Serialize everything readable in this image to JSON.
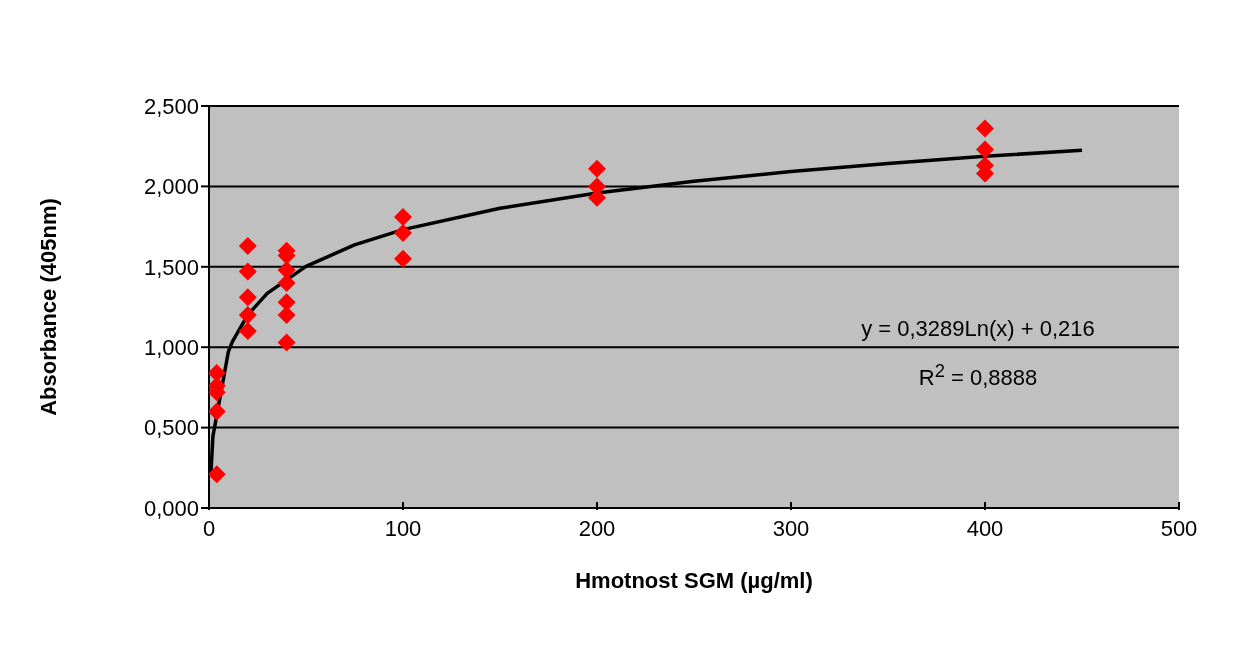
{
  "chart_data": {
    "type": "scatter",
    "xlabel": "Hmotnost SGM (µg/ml)",
    "ylabel": "Absorbance (405nm)",
    "xlim": [
      0,
      500
    ],
    "xticks": [
      0,
      100,
      200,
      300,
      400,
      500
    ],
    "ylim": [
      0,
      2.5
    ],
    "yticks": [
      {
        "value": 0,
        "label": "0,000"
      },
      {
        "value": 0.5,
        "label": "0,500"
      },
      {
        "value": 1,
        "label": "1,000"
      },
      {
        "value": 1.5,
        "label": "1,500"
      },
      {
        "value": 2,
        "label": "2,000"
      },
      {
        "value": 2.5,
        "label": "2,500"
      }
    ],
    "grid": "y",
    "series": [
      {
        "marker": "diamond",
        "color": "#ff0000",
        "x": [
          4,
          4,
          4,
          4,
          4,
          20,
          20,
          20,
          20,
          20,
          40,
          40,
          40,
          40,
          40,
          40,
          40,
          100,
          100,
          100,
          200,
          200,
          200,
          400,
          400,
          400,
          400
        ],
        "values": [
          0.84,
          0.76,
          0.72,
          0.6,
          0.21,
          1.63,
          1.47,
          1.31,
          1.2,
          1.1,
          1.6,
          1.57,
          1.48,
          1.4,
          1.28,
          1.2,
          1.03,
          1.81,
          1.71,
          1.55,
          2.11,
          2.0,
          1.93,
          2.36,
          2.23,
          2.13,
          2.08
        ]
      },
      {
        "type": "line",
        "marker": "none",
        "line_style": "solid",
        "color": "#000000",
        "x": [
          1,
          2,
          10,
          12,
          20,
          30,
          50,
          75,
          100,
          150,
          200,
          250,
          300,
          350,
          400,
          450
        ],
        "values": [
          0.216,
          0.444,
          0.973,
          1.033,
          1.201,
          1.335,
          1.503,
          1.636,
          1.731,
          1.864,
          1.959,
          2.032,
          2.092,
          2.143,
          2.187,
          2.225
        ]
      }
    ],
    "annotations": [
      "y = 0,3289Ln(x) + 0,216",
      "R$^{2}$ = 0,8888"
    ]
  }
}
